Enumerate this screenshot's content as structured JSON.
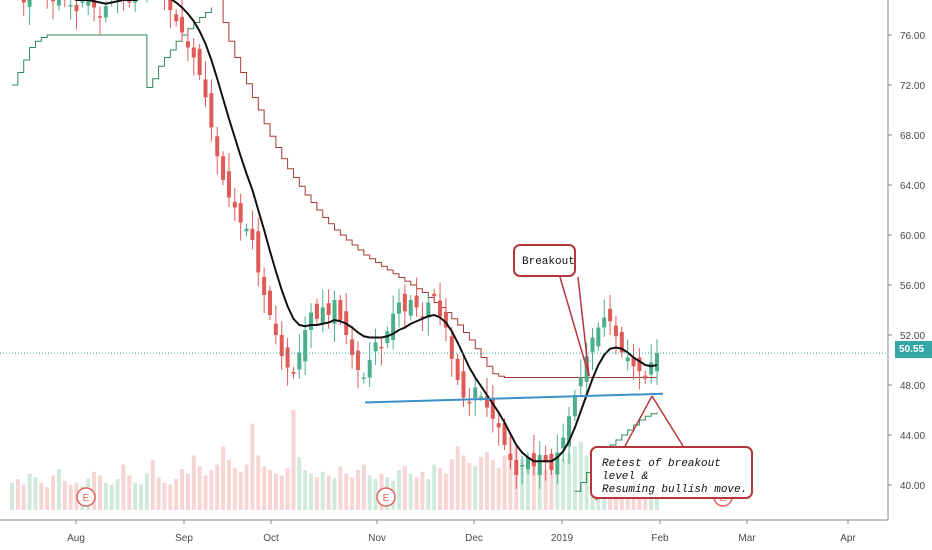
{
  "chart_data": {
    "type": "candlestick",
    "price_axis": {
      "ticks": [
        "76.00",
        "72.00",
        "68.00",
        "64.00",
        "60.00",
        "56.00",
        "52.00",
        "48.00",
        "44.00",
        "40.00"
      ],
      "range": [
        37,
        80
      ]
    },
    "time_axis": {
      "ticks": [
        "Aug",
        "Sep",
        "Oct",
        "Nov",
        "Dec",
        "2019",
        "Feb",
        "Mar",
        "Apr"
      ]
    },
    "last_price": "50.55",
    "colors": {
      "up": "#4caf8a",
      "down": "#e05a58",
      "sma": "#111111",
      "upper_band": "#a83a32",
      "lower_band": "#2e8b57",
      "trendline": "#3d8ec9",
      "last_price": "#32a7a4",
      "callout_border": "#b5373d"
    },
    "closes": [
      80.5,
      79.5,
      78.6,
      79.8,
      81.0,
      80.1,
      79.2,
      78.7,
      79.6,
      79.0,
      78.4,
      77.9,
      78.7,
      79.3,
      78.2,
      77.4,
      78.3,
      79.2,
      80.1,
      79.4,
      78.6,
      79.5,
      80.4,
      81.2,
      80.6,
      79.8,
      79.1,
      78.0,
      77.1,
      76.2,
      75.0,
      74.2,
      72.8,
      71.0,
      68.6,
      66.3,
      64.4,
      63.0,
      62.2,
      61.0,
      60.5,
      59.6,
      57.0,
      55.2,
      53.6,
      52.0,
      50.3,
      49.4,
      48.9,
      50.6,
      52.4,
      53.8,
      53.3,
      54.2,
      53.6,
      54.8,
      53.2,
      52.0,
      50.4,
      49.2,
      48.6,
      50.0,
      51.4,
      51.0,
      52.3,
      53.7,
      54.6,
      53.9,
      54.8,
      54.2,
      53.4,
      54.6,
      55.1,
      53.5,
      52.6,
      50.1,
      48.4,
      47.0,
      46.6,
      47.8,
      47.1,
      46.2,
      45.3,
      44.6,
      43.2,
      42.0,
      40.8,
      41.6,
      42.2,
      41.5,
      42.4,
      41.8,
      41.2,
      42.6,
      43.8,
      45.5,
      47.2,
      48.6,
      50.3,
      51.8,
      52.6,
      53.4,
      53.1,
      51.9,
      50.6,
      50.2,
      49.5,
      49.1,
      48.5,
      49.8,
      50.55
    ],
    "sma": [
      79.6,
      79.5,
      79.3,
      79.4,
      79.5,
      79.4,
      79.2,
      79.1,
      79.2,
      79.1,
      79.0,
      78.8,
      78.8,
      78.8,
      78.7,
      78.6,
      78.5,
      78.6,
      78.7,
      78.8,
      78.8,
      78.8,
      78.9,
      79.1,
      79.2,
      79.2,
      79.1,
      78.9,
      78.6,
      78.2,
      77.7,
      77.1,
      76.3,
      75.3,
      74.0,
      72.5,
      70.9,
      69.3,
      67.8,
      66.3,
      64.9,
      63.6,
      62.0,
      60.4,
      58.7,
      57.1,
      55.6,
      54.3,
      53.3,
      52.8,
      52.7,
      52.8,
      52.8,
      52.9,
      53.0,
      53.2,
      53.1,
      52.9,
      52.6,
      52.2,
      51.9,
      51.8,
      51.8,
      51.8,
      51.9,
      52.1,
      52.4,
      52.6,
      52.9,
      53.1,
      53.3,
      53.5,
      53.6,
      53.4,
      53.0,
      52.3,
      51.4,
      50.4,
      49.4,
      48.6,
      47.9,
      47.2,
      46.5,
      45.8,
      45.0,
      44.1,
      43.2,
      42.6,
      42.2,
      41.9,
      41.9,
      41.9,
      41.9,
      42.2,
      42.7,
      43.5,
      44.6,
      45.9,
      47.2,
      48.5,
      49.6,
      50.4,
      50.9,
      51.0,
      50.9,
      50.6,
      50.2,
      49.9,
      49.6,
      49.5,
      49.6
    ],
    "upper_band": [
      80.5,
      80.5,
      80.5,
      80.5,
      81.0,
      81.0,
      81.0,
      81.0,
      81.0,
      81.0,
      81.0,
      81.0,
      81.0,
      81.0,
      81.0,
      81.0,
      81.0,
      81.0,
      81.0,
      81.0,
      81.0,
      81.0,
      81.0,
      81.2,
      81.2,
      81.2,
      81.2,
      81.2,
      81.2,
      81.2,
      81.2,
      81.2,
      81.2,
      81.0,
      80.4,
      79.0,
      77.0,
      75.5,
      74.2,
      73.0,
      72.1,
      71.0,
      70.0,
      68.9,
      67.9,
      67.0,
      66.1,
      65.3,
      64.6,
      63.9,
      63.2,
      62.6,
      62.0,
      61.4,
      60.9,
      60.4,
      60.0,
      59.6,
      59.2,
      58.8,
      58.4,
      58.1,
      57.8,
      57.5,
      57.2,
      56.9,
      56.6,
      56.3,
      56.0,
      55.7,
      55.4,
      55.0,
      54.6,
      54.2,
      53.8,
      53.3,
      52.8,
      52.2,
      51.6,
      50.9,
      50.2,
      49.5,
      48.9,
      48.7,
      48.6,
      48.6,
      48.6,
      48.6,
      48.6,
      48.6,
      48.6,
      48.6,
      48.6,
      48.6,
      48.6,
      48.6,
      48.6,
      48.6,
      48.6,
      48.6,
      48.6,
      48.6,
      48.6,
      48.6,
      48.6,
      48.6,
      48.6,
      48.6,
      48.6,
      48.6,
      48.6
    ],
    "lower_band": [
      72.0,
      73.0,
      74.0,
      75.0,
      75.5,
      75.8,
      76.0,
      76.0,
      76.0,
      76.0,
      76.0,
      76.0,
      76.0,
      76.0,
      76.0,
      76.0,
      76.0,
      76.0,
      76.0,
      76.0,
      76.0,
      76.0,
      76.0,
      71.8,
      72.5,
      73.5,
      74.2,
      74.8,
      75.5,
      76.0,
      76.5,
      77.0,
      77.4,
      77.8,
      78.2
    ],
    "lower_band_late": [
      39.5,
      40.2,
      41.0,
      41.6,
      42.2,
      42.8,
      43.2,
      43.6,
      44.0,
      44.4,
      44.8,
      45.2,
      45.5,
      45.7,
      45.8
    ],
    "volumes": [
      30,
      34,
      28,
      40,
      36,
      30,
      25,
      38,
      45,
      32,
      28,
      30,
      26,
      35,
      42,
      38,
      30,
      28,
      34,
      50,
      38,
      30,
      28,
      40,
      55,
      36,
      30,
      28,
      34,
      45,
      40,
      60,
      48,
      38,
      44,
      50,
      70,
      55,
      46,
      42,
      50,
      95,
      60,
      48,
      44,
      40,
      38,
      46,
      110,
      58,
      44,
      40,
      36,
      42,
      38,
      35,
      48,
      40,
      36,
      44,
      50,
      38,
      34,
      40,
      36,
      32,
      44,
      48,
      40,
      36,
      42,
      34,
      50,
      46,
      40,
      56,
      70,
      60,
      52,
      48,
      58,
      64,
      55,
      46,
      60,
      80,
      70,
      56,
      48,
      52,
      46,
      44,
      50,
      42,
      56,
      62,
      70,
      75,
      60,
      52,
      46,
      50,
      44,
      48,
      40,
      38,
      44,
      40,
      36,
      34,
      38
    ],
    "trendline": {
      "from": 46.6,
      "to": 47.3
    },
    "event_markers": [
      "E",
      "E",
      "E"
    ],
    "annotations": {
      "breakout": "Breakout",
      "retest_line1": "Retest of breakout level &",
      "retest_line2": "Resuming bullish move."
    }
  }
}
